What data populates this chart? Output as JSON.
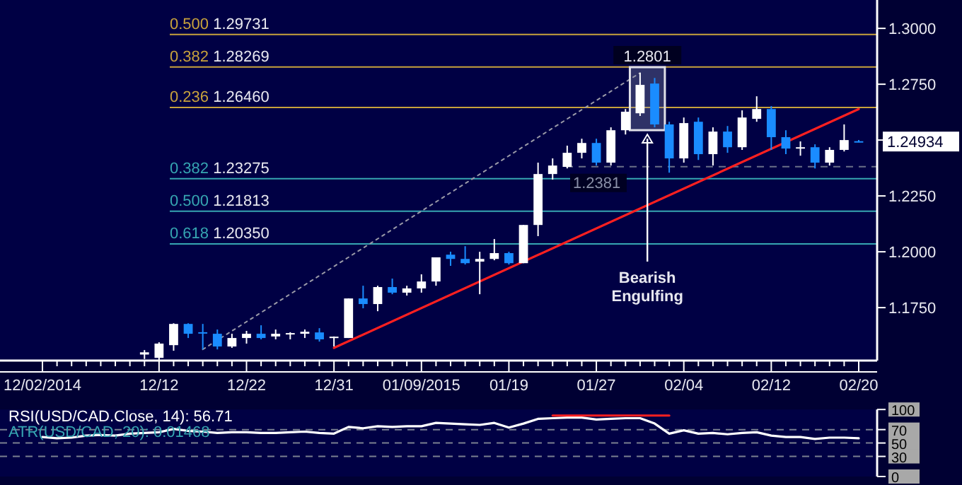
{
  "chart_data": [
    {
      "type": "candlestick",
      "categories": [
        "12/02/2014",
        null,
        null,
        null,
        null,
        null,
        null,
        null,
        "12/12",
        null,
        null,
        null,
        null,
        null,
        "12/22",
        null,
        null,
        null,
        null,
        null,
        "12/31",
        null,
        null,
        null,
        null,
        null,
        "01/09/2015",
        null,
        null,
        null,
        null,
        null,
        "01/19",
        null,
        null,
        null,
        null,
        null,
        "01/27",
        null,
        null,
        null,
        null,
        null,
        "02/04",
        null,
        null,
        null,
        null,
        null,
        "02/12",
        null,
        null,
        null,
        null,
        null,
        "02/20"
      ],
      "ohlc": [
        null,
        null,
        null,
        null,
        null,
        null,
        null,
        [
          1.154,
          1.156,
          1.152,
          1.155
        ],
        [
          1.1525,
          1.1595,
          1.1515,
          1.1589
        ],
        [
          1.1582,
          1.168,
          1.1557,
          1.1677
        ],
        [
          1.1677,
          1.168,
          1.1614,
          1.1633
        ],
        [
          1.164,
          1.1677,
          1.1563,
          1.1636
        ],
        [
          1.1633,
          1.1652,
          1.1563,
          1.1576
        ],
        [
          1.1576,
          1.1633,
          1.157,
          1.1614
        ],
        [
          1.1614,
          1.1646,
          1.1589,
          1.1633
        ],
        [
          1.1633,
          1.1671,
          1.1608,
          1.1614
        ],
        [
          1.1621,
          1.1652,
          1.1608,
          1.1633
        ],
        [
          1.163,
          1.164,
          1.1608,
          1.1636
        ],
        [
          1.1633,
          1.1652,
          1.1614,
          1.1642
        ],
        [
          1.1639,
          1.1658,
          1.1598,
          1.1608
        ],
        [
          1.1617,
          1.1621,
          1.1576,
          1.162
        ],
        [
          1.1614,
          1.1791,
          1.1614,
          1.1791
        ],
        [
          1.1791,
          1.1848,
          1.1747,
          1.1766
        ],
        [
          1.1766,
          1.1848,
          1.1734,
          1.1842
        ],
        [
          1.1842,
          1.188,
          1.181,
          1.1817
        ],
        [
          1.1817,
          1.1848,
          1.1804,
          1.1836
        ],
        [
          1.1836,
          1.1899,
          1.1817,
          1.1867
        ],
        [
          1.1867,
          1.1975,
          1.1848,
          1.1975
        ],
        [
          1.1987,
          1.2,
          1.1937,
          1.1968
        ],
        [
          1.1968,
          1.2025,
          1.1943,
          1.1949
        ],
        [
          1.1956,
          1.2,
          1.181,
          1.1968
        ],
        [
          1.1968,
          1.2057,
          1.1962,
          1.1994
        ],
        [
          1.1994,
          1.2,
          1.1943,
          1.1949
        ],
        [
          1.1949,
          1.212,
          1.1949,
          1.212
        ],
        [
          1.212,
          1.2399,
          1.207,
          1.2348
        ],
        [
          1.2348,
          1.2418,
          1.2323,
          1.2386
        ],
        [
          1.238,
          1.2475,
          1.2373,
          1.2443
        ],
        [
          1.2443,
          1.2506,
          1.2418,
          1.2487
        ],
        [
          1.2487,
          1.2506,
          1.2386,
          1.2399
        ],
        [
          1.2399,
          1.2557,
          1.2386,
          1.2544
        ],
        [
          1.2544,
          1.2639,
          1.2525,
          1.2627
        ],
        [
          1.262,
          1.2801,
          1.2608,
          1.2747
        ],
        [
          1.2753,
          1.2778,
          1.2557,
          1.257
        ],
        [
          1.257,
          1.2582,
          1.2354,
          1.2418
        ],
        [
          1.2418,
          1.2601,
          1.2399,
          1.2576
        ],
        [
          1.2582,
          1.2601,
          1.2411,
          1.2437
        ],
        [
          1.2437,
          1.2557,
          1.2386,
          1.2538
        ],
        [
          1.2538,
          1.2563,
          1.2443,
          1.2468
        ],
        [
          1.2468,
          1.2633,
          1.2456,
          1.2601
        ],
        [
          1.2595,
          1.2696,
          1.2582,
          1.2639
        ],
        [
          1.2639,
          1.2652,
          1.2456,
          1.2513
        ],
        [
          1.2513,
          1.2544,
          1.2437,
          1.2462
        ],
        [
          1.2465,
          1.2494,
          1.243,
          1.2468
        ],
        [
          1.2468,
          1.2481,
          1.2373,
          1.2399
        ],
        [
          1.2399,
          1.2468,
          1.2386,
          1.2456
        ],
        [
          1.2456,
          1.257,
          1.2449,
          1.25
        ],
        [
          1.2495,
          1.25,
          1.249,
          1.24934
        ]
      ],
      "colors": [
        null,
        null,
        null,
        null,
        null,
        null,
        null,
        "#ffffff",
        "#ffffff",
        "#ffffff",
        "#1a8cff",
        "#1a8cff",
        "#1a8cff",
        "#ffffff",
        "#ffffff",
        "#1a8cff",
        "#ffffff",
        "#ffffff",
        "#ffffff",
        "#1a8cff",
        "#ffffff",
        "#ffffff",
        "#1a8cff",
        "#ffffff",
        "#1a8cff",
        "#ffffff",
        "#ffffff",
        "#ffffff",
        "#1a8cff",
        "#1a8cff",
        "#ffffff",
        "#ffffff",
        "#1a8cff",
        "#ffffff",
        "#ffffff",
        "#ffffff",
        "#ffffff",
        "#ffffff",
        "#1a8cff",
        "#ffffff",
        "#ffffff",
        "#ffffff",
        "#1a8cff",
        "#1a8cff",
        "#ffffff",
        "#1a8cff",
        "#ffffff",
        "#1a8cff",
        "#ffffff",
        "#ffffff",
        "#1a8cff",
        "#1a8cff",
        "#ffffff",
        "#1a8cff",
        "#ffffff",
        "#ffffff",
        "#1a8cff"
      ],
      "series": [
        {
          "type": "line",
          "color": "#ff2020",
          "values": [
            null,
            null,
            null,
            null,
            null,
            null,
            null,
            null,
            null,
            null,
            null,
            null,
            null,
            null,
            null,
            null,
            null,
            null,
            null,
            null,
            1.157,
            null,
            null,
            null,
            null,
            null,
            null,
            null,
            null,
            null,
            null,
            null,
            null,
            null,
            null,
            null,
            null,
            null,
            null,
            null,
            null,
            null,
            null,
            null,
            null,
            null,
            null,
            null,
            null,
            null,
            null,
            null,
            null,
            null,
            null,
            null,
            1.2639
          ]
        },
        {
          "type": "line",
          "color": "#9a9aa8",
          "line_style": "dotted",
          "values": [
            null,
            null,
            null,
            null,
            null,
            null,
            null,
            null,
            null,
            null,
            null,
            1.1563,
            null,
            null,
            null,
            null,
            null,
            null,
            null,
            null,
            null,
            null,
            null,
            null,
            null,
            null,
            null,
            null,
            null,
            null,
            null,
            null,
            null,
            null,
            null,
            null,
            null,
            null,
            null,
            null,
            null,
            1.2801,
            null,
            null,
            null,
            null,
            null,
            null,
            null,
            null,
            null,
            null,
            null,
            null,
            null,
            null,
            null
          ]
        }
      ],
      "ylim": [
        1.1513,
        1.3127
      ],
      "yticks": [
        {
          "value": 1.175,
          "label": "1.1750"
        },
        {
          "value": 1.2,
          "label": "1.2000"
        },
        {
          "value": 1.225,
          "label": "1.2250"
        },
        {
          "value": 1.25,
          "label": null
        },
        {
          "value": 1.275,
          "label": "1.2750"
        },
        {
          "value": 1.3,
          "label": "1.3000"
        }
      ],
      "ref_lines": [
        {
          "axis": "y",
          "value": 1.29731,
          "label": "0.500 1.29731",
          "color": "#c8a23c"
        },
        {
          "axis": "y",
          "value": 1.28269,
          "label": "0.382 1.28269",
          "color": "#c8a23c"
        },
        {
          "axis": "y",
          "value": 1.2646,
          "label": "0.236 1.26460",
          "color": "#c8a23c"
        },
        {
          "axis": "y",
          "value": 1.23275,
          "label": "0.382 1.23275",
          "color": "#36a6b2"
        },
        {
          "axis": "y",
          "value": 1.21813,
          "label": "0.500 1.21813",
          "color": "#36a6b2"
        },
        {
          "axis": "y",
          "value": 1.2035,
          "label": "0.618 1.20350",
          "color": "#36a6b2"
        },
        {
          "axis": "y",
          "value": 1.2381,
          "label": "1.2381",
          "color": "#6a7088",
          "line_style": "dashed"
        }
      ],
      "annotations": [
        {
          "text": "1.2801",
          "y": 1.2801
        },
        "Bearish Engulfing",
        "1.24934"
      ]
    },
    {
      "type": "line",
      "categories": [
        null,
        null,
        null,
        null,
        null,
        null,
        null,
        null,
        null,
        null,
        null,
        null,
        null,
        null,
        null,
        null,
        null,
        null,
        null,
        null,
        null,
        null,
        null,
        null,
        null,
        null,
        null,
        null,
        null,
        null,
        null,
        null,
        null,
        null,
        null,
        null,
        null,
        null,
        null,
        null,
        null,
        null,
        null,
        null,
        null,
        null,
        null,
        null,
        null,
        null,
        null,
        null,
        null,
        null,
        null,
        null,
        null
      ],
      "series": [
        {
          "name": "RSI(USD/CAD.Close, 14): 56.71",
          "color": "#ffffff",
          "values": [
            59,
            57,
            58,
            61,
            62,
            61,
            64,
            65,
            66,
            71,
            68,
            67,
            65,
            66,
            66,
            65,
            65,
            66,
            67,
            65,
            64,
            74,
            72,
            75,
            74,
            75,
            75,
            80,
            79,
            78,
            77,
            80,
            73,
            79,
            86,
            87,
            88,
            88,
            85,
            86,
            87,
            87,
            79,
            64,
            69,
            64,
            65,
            63,
            65,
            66,
            61,
            59,
            59,
            56,
            58,
            58,
            57
          ]
        },
        {
          "color": "#ff2020",
          "values": [
            null,
            null,
            null,
            null,
            null,
            null,
            null,
            null,
            null,
            null,
            null,
            null,
            null,
            null,
            null,
            null,
            null,
            null,
            null,
            null,
            null,
            null,
            null,
            null,
            null,
            null,
            null,
            null,
            null,
            null,
            null,
            null,
            null,
            null,
            null,
            91,
            null,
            null,
            null,
            null,
            null,
            null,
            null,
            91,
            null,
            null,
            null,
            null,
            null,
            null,
            null,
            null,
            null,
            null,
            null,
            null,
            null
          ]
        }
      ],
      "ylim": [
        0,
        100
      ],
      "yticks": [
        100,
        70,
        50,
        30,
        0
      ],
      "tick_labels": "y",
      "ref_lines": [
        {
          "axis": "y",
          "value": 70,
          "color": "#7a8090",
          "line_style": "dashed"
        },
        {
          "axis": "y",
          "value": 50,
          "color": "#7a8090",
          "line_style": "dashed"
        },
        {
          "axis": "y",
          "value": 30,
          "color": "#7a8090",
          "line_style": "dashed"
        }
      ],
      "annotations": [
        "ATR(USD/CAD, 20): 0.01468"
      ]
    }
  ]
}
